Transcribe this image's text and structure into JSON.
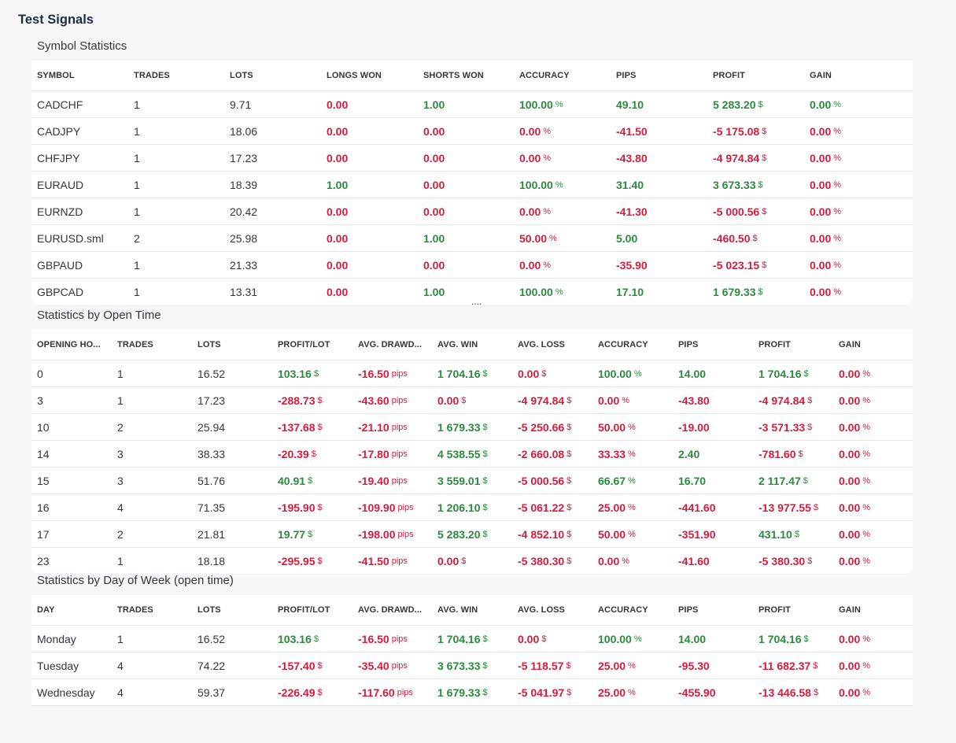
{
  "page_title": "Test Signals",
  "more_indicator": "....",
  "colors": {
    "positive": "#2b8a3e",
    "negative": "#d81b3c"
  },
  "sections": [
    {
      "title": "Symbol Statistics",
      "columns": [
        {
          "label": "SYMBOL",
          "kind": "text"
        },
        {
          "label": "TRADES",
          "kind": "text"
        },
        {
          "label": "LOTS",
          "kind": "text"
        },
        {
          "label": "LONGS WON",
          "kind": "num"
        },
        {
          "label": "SHORTS WON",
          "kind": "num"
        },
        {
          "label": "ACCURACY",
          "kind": "num",
          "unit": "%"
        },
        {
          "label": "PIPS",
          "kind": "num"
        },
        {
          "label": "PROFIT",
          "kind": "num",
          "unit": "$"
        },
        {
          "label": "GAIN",
          "kind": "num",
          "unit": "%"
        }
      ],
      "rows": [
        [
          {
            "v": "CADCHF"
          },
          {
            "v": "1"
          },
          {
            "v": "9.71"
          },
          {
            "v": "0.00",
            "c": "neg"
          },
          {
            "v": "1.00",
            "c": "pos"
          },
          {
            "v": "100.00",
            "c": "pos"
          },
          {
            "v": "49.10",
            "c": "pos"
          },
          {
            "v": "5 283.20",
            "c": "pos"
          },
          {
            "v": "0.00",
            "c": "pos"
          }
        ],
        [
          {
            "v": "CADJPY"
          },
          {
            "v": "1"
          },
          {
            "v": "18.06"
          },
          {
            "v": "0.00",
            "c": "neg"
          },
          {
            "v": "0.00",
            "c": "neg"
          },
          {
            "v": "0.00",
            "c": "neg"
          },
          {
            "v": "-41.50",
            "c": "neg"
          },
          {
            "v": "-5 175.08",
            "c": "neg"
          },
          {
            "v": "0.00",
            "c": "neg"
          }
        ],
        [
          {
            "v": "CHFJPY"
          },
          {
            "v": "1"
          },
          {
            "v": "17.23"
          },
          {
            "v": "0.00",
            "c": "neg"
          },
          {
            "v": "0.00",
            "c": "neg"
          },
          {
            "v": "0.00",
            "c": "neg"
          },
          {
            "v": "-43.80",
            "c": "neg"
          },
          {
            "v": "-4 974.84",
            "c": "neg"
          },
          {
            "v": "0.00",
            "c": "neg"
          }
        ],
        [
          {
            "v": "EURAUD"
          },
          {
            "v": "1"
          },
          {
            "v": "18.39"
          },
          {
            "v": "1.00",
            "c": "pos"
          },
          {
            "v": "0.00",
            "c": "neg"
          },
          {
            "v": "100.00",
            "c": "pos"
          },
          {
            "v": "31.40",
            "c": "pos"
          },
          {
            "v": "3 673.33",
            "c": "pos"
          },
          {
            "v": "0.00",
            "c": "neg"
          }
        ],
        [
          {
            "v": "EURNZD"
          },
          {
            "v": "1"
          },
          {
            "v": "20.42"
          },
          {
            "v": "0.00",
            "c": "neg"
          },
          {
            "v": "0.00",
            "c": "neg"
          },
          {
            "v": "0.00",
            "c": "neg"
          },
          {
            "v": "-41.30",
            "c": "neg"
          },
          {
            "v": "-5 000.56",
            "c": "neg"
          },
          {
            "v": "0.00",
            "c": "neg"
          }
        ],
        [
          {
            "v": "EURUSD.sml"
          },
          {
            "v": "2"
          },
          {
            "v": "25.98"
          },
          {
            "v": "0.00",
            "c": "neg"
          },
          {
            "v": "1.00",
            "c": "pos"
          },
          {
            "v": "50.00",
            "c": "neg"
          },
          {
            "v": "5.00",
            "c": "pos"
          },
          {
            "v": "-460.50",
            "c": "neg"
          },
          {
            "v": "0.00",
            "c": "neg"
          }
        ],
        [
          {
            "v": "GBPAUD"
          },
          {
            "v": "1"
          },
          {
            "v": "21.33"
          },
          {
            "v": "0.00",
            "c": "neg"
          },
          {
            "v": "0.00",
            "c": "neg"
          },
          {
            "v": "0.00",
            "c": "neg"
          },
          {
            "v": "-35.90",
            "c": "neg"
          },
          {
            "v": "-5 023.15",
            "c": "neg"
          },
          {
            "v": "0.00",
            "c": "neg"
          }
        ],
        [
          {
            "v": "GBPCAD"
          },
          {
            "v": "1"
          },
          {
            "v": "13.31"
          },
          {
            "v": "0.00",
            "c": "neg"
          },
          {
            "v": "1.00",
            "c": "pos"
          },
          {
            "v": "100.00",
            "c": "pos"
          },
          {
            "v": "17.10",
            "c": "pos"
          },
          {
            "v": "1 679.33",
            "c": "pos"
          },
          {
            "v": "0.00",
            "c": "neg"
          }
        ]
      ]
    },
    {
      "title": "Statistics by Open Time",
      "columns": [
        {
          "label": "OPENING HO...",
          "kind": "text"
        },
        {
          "label": "TRADES",
          "kind": "text"
        },
        {
          "label": "LOTS",
          "kind": "text"
        },
        {
          "label": "PROFIT/LOT",
          "kind": "num",
          "unit": "$"
        },
        {
          "label": "AVG. DRAWD...",
          "kind": "num",
          "unit": "pips"
        },
        {
          "label": "AVG. WIN",
          "kind": "num",
          "unit": "$"
        },
        {
          "label": "AVG. LOSS",
          "kind": "num",
          "unit": "$"
        },
        {
          "label": "ACCURACY",
          "kind": "num",
          "unit": "%"
        },
        {
          "label": "PIPS",
          "kind": "num"
        },
        {
          "label": "PROFIT",
          "kind": "num",
          "unit": "$"
        },
        {
          "label": "GAIN",
          "kind": "num",
          "unit": "%"
        }
      ],
      "rows": [
        [
          {
            "v": "0"
          },
          {
            "v": "1"
          },
          {
            "v": "16.52"
          },
          {
            "v": "103.16",
            "c": "pos"
          },
          {
            "v": "-16.50",
            "c": "neg"
          },
          {
            "v": "1 704.16",
            "c": "pos"
          },
          {
            "v": "0.00",
            "c": "neg"
          },
          {
            "v": "100.00",
            "c": "pos"
          },
          {
            "v": "14.00",
            "c": "pos"
          },
          {
            "v": "1 704.16",
            "c": "pos"
          },
          {
            "v": "0.00",
            "c": "neg"
          }
        ],
        [
          {
            "v": "3"
          },
          {
            "v": "1"
          },
          {
            "v": "17.23"
          },
          {
            "v": "-288.73",
            "c": "neg"
          },
          {
            "v": "-43.60",
            "c": "neg"
          },
          {
            "v": "0.00",
            "c": "neg"
          },
          {
            "v": "-4 974.84",
            "c": "neg"
          },
          {
            "v": "0.00",
            "c": "neg"
          },
          {
            "v": "-43.80",
            "c": "neg"
          },
          {
            "v": "-4 974.84",
            "c": "neg"
          },
          {
            "v": "0.00",
            "c": "neg"
          }
        ],
        [
          {
            "v": "10"
          },
          {
            "v": "2"
          },
          {
            "v": "25.94"
          },
          {
            "v": "-137.68",
            "c": "neg"
          },
          {
            "v": "-21.10",
            "c": "neg"
          },
          {
            "v": "1 679.33",
            "c": "pos"
          },
          {
            "v": "-5 250.66",
            "c": "neg"
          },
          {
            "v": "50.00",
            "c": "neg"
          },
          {
            "v": "-19.00",
            "c": "neg"
          },
          {
            "v": "-3 571.33",
            "c": "neg"
          },
          {
            "v": "0.00",
            "c": "neg"
          }
        ],
        [
          {
            "v": "14"
          },
          {
            "v": "3"
          },
          {
            "v": "38.33"
          },
          {
            "v": "-20.39",
            "c": "neg"
          },
          {
            "v": "-17.80",
            "c": "neg"
          },
          {
            "v": "4 538.55",
            "c": "pos"
          },
          {
            "v": "-2 660.08",
            "c": "neg"
          },
          {
            "v": "33.33",
            "c": "neg"
          },
          {
            "v": "2.40",
            "c": "pos"
          },
          {
            "v": "-781.60",
            "c": "neg"
          },
          {
            "v": "0.00",
            "c": "neg"
          }
        ],
        [
          {
            "v": "15"
          },
          {
            "v": "3"
          },
          {
            "v": "51.76"
          },
          {
            "v": "40.91",
            "c": "pos"
          },
          {
            "v": "-19.40",
            "c": "neg"
          },
          {
            "v": "3 559.01",
            "c": "pos"
          },
          {
            "v": "-5 000.56",
            "c": "neg"
          },
          {
            "v": "66.67",
            "c": "pos"
          },
          {
            "v": "16.70",
            "c": "pos"
          },
          {
            "v": "2 117.47",
            "c": "pos"
          },
          {
            "v": "0.00",
            "c": "neg"
          }
        ],
        [
          {
            "v": "16"
          },
          {
            "v": "4"
          },
          {
            "v": "71.35"
          },
          {
            "v": "-195.90",
            "c": "neg"
          },
          {
            "v": "-109.90",
            "c": "neg"
          },
          {
            "v": "1 206.10",
            "c": "pos"
          },
          {
            "v": "-5 061.22",
            "c": "neg"
          },
          {
            "v": "25.00",
            "c": "neg"
          },
          {
            "v": "-441.60",
            "c": "neg"
          },
          {
            "v": "-13 977.55",
            "c": "neg"
          },
          {
            "v": "0.00",
            "c": "neg"
          }
        ],
        [
          {
            "v": "17"
          },
          {
            "v": "2"
          },
          {
            "v": "21.81"
          },
          {
            "v": "19.77",
            "c": "pos"
          },
          {
            "v": "-198.00",
            "c": "neg"
          },
          {
            "v": "5 283.20",
            "c": "pos"
          },
          {
            "v": "-4 852.10",
            "c": "neg"
          },
          {
            "v": "50.00",
            "c": "neg"
          },
          {
            "v": "-351.90",
            "c": "neg"
          },
          {
            "v": "431.10",
            "c": "pos"
          },
          {
            "v": "0.00",
            "c": "neg"
          }
        ],
        [
          {
            "v": "23"
          },
          {
            "v": "1"
          },
          {
            "v": "18.18"
          },
          {
            "v": "-295.95",
            "c": "neg"
          },
          {
            "v": "-41.50",
            "c": "neg"
          },
          {
            "v": "0.00",
            "c": "neg"
          },
          {
            "v": "-5 380.30",
            "c": "neg"
          },
          {
            "v": "0.00",
            "c": "neg"
          },
          {
            "v": "-41.60",
            "c": "neg"
          },
          {
            "v": "-5 380.30",
            "c": "neg"
          },
          {
            "v": "0.00",
            "c": "neg"
          }
        ]
      ]
    },
    {
      "title": "Statistics by Day of Week (open time)",
      "columns": [
        {
          "label": "DAY",
          "kind": "text"
        },
        {
          "label": "TRADES",
          "kind": "text"
        },
        {
          "label": "LOTS",
          "kind": "text"
        },
        {
          "label": "PROFIT/LOT",
          "kind": "num",
          "unit": "$"
        },
        {
          "label": "AVG. DRAWD...",
          "kind": "num",
          "unit": "pips"
        },
        {
          "label": "AVG. WIN",
          "kind": "num",
          "unit": "$"
        },
        {
          "label": "AVG. LOSS",
          "kind": "num",
          "unit": "$"
        },
        {
          "label": "ACCURACY",
          "kind": "num",
          "unit": "%"
        },
        {
          "label": "PIPS",
          "kind": "num"
        },
        {
          "label": "PROFIT",
          "kind": "num",
          "unit": "$"
        },
        {
          "label": "GAIN",
          "kind": "num",
          "unit": "%"
        }
      ],
      "rows": [
        [
          {
            "v": "Monday"
          },
          {
            "v": "1"
          },
          {
            "v": "16.52"
          },
          {
            "v": "103.16",
            "c": "pos"
          },
          {
            "v": "-16.50",
            "c": "neg"
          },
          {
            "v": "1 704.16",
            "c": "pos"
          },
          {
            "v": "0.00",
            "c": "neg"
          },
          {
            "v": "100.00",
            "c": "pos"
          },
          {
            "v": "14.00",
            "c": "pos"
          },
          {
            "v": "1 704.16",
            "c": "pos"
          },
          {
            "v": "0.00",
            "c": "neg"
          }
        ],
        [
          {
            "v": "Tuesday"
          },
          {
            "v": "4"
          },
          {
            "v": "74.22"
          },
          {
            "v": "-157.40",
            "c": "neg"
          },
          {
            "v": "-35.40",
            "c": "neg"
          },
          {
            "v": "3 673.33",
            "c": "pos"
          },
          {
            "v": "-5 118.57",
            "c": "neg"
          },
          {
            "v": "25.00",
            "c": "neg"
          },
          {
            "v": "-95.30",
            "c": "neg"
          },
          {
            "v": "-11 682.37",
            "c": "neg"
          },
          {
            "v": "0.00",
            "c": "neg"
          }
        ],
        [
          {
            "v": "Wednesday"
          },
          {
            "v": "4"
          },
          {
            "v": "59.37"
          },
          {
            "v": "-226.49",
            "c": "neg"
          },
          {
            "v": "-117.60",
            "c": "neg"
          },
          {
            "v": "1 679.33",
            "c": "pos"
          },
          {
            "v": "-5 041.97",
            "c": "neg"
          },
          {
            "v": "25.00",
            "c": "neg"
          },
          {
            "v": "-455.90",
            "c": "neg"
          },
          {
            "v": "-13 446.58",
            "c": "neg"
          },
          {
            "v": "0.00",
            "c": "neg"
          }
        ]
      ]
    }
  ]
}
